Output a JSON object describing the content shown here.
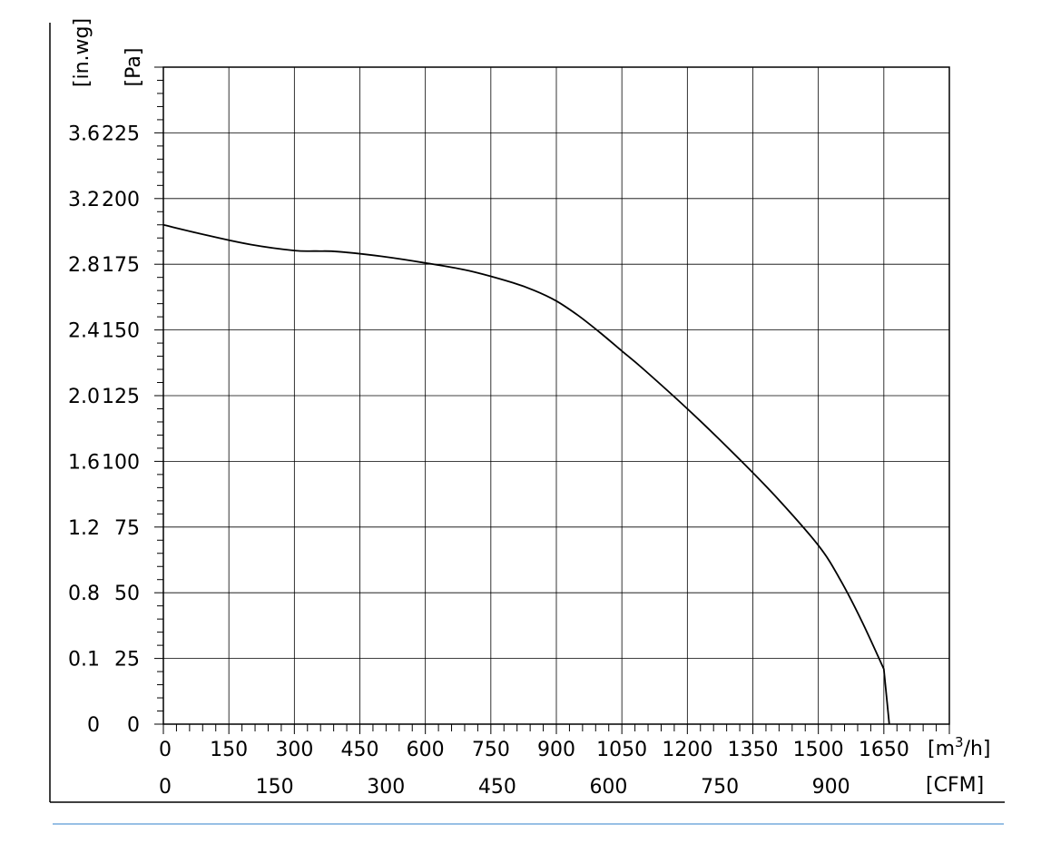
{
  "chart_data": {
    "type": "line",
    "title": "",
    "x_primary": {
      "unit_label": "[m³/h]",
      "min": 0,
      "max": 1800,
      "ticks": [
        0,
        150,
        300,
        450,
        600,
        750,
        900,
        1050,
        1200,
        1350,
        1500,
        1650
      ],
      "tick_labels": [
        "0",
        "150",
        "300",
        "450",
        "600",
        "750",
        "900",
        "1050",
        "1200",
        "1350",
        "1500",
        "1650"
      ],
      "minor_step": 30
    },
    "x_secondary": {
      "unit_label": "[CFM]",
      "ticks_m3h": [
        0,
        254.9,
        509.7,
        764.6,
        1019.4,
        1274.3,
        1529.1
      ],
      "tick_labels": [
        "0",
        "150",
        "300",
        "450",
        "600",
        "750",
        "900"
      ]
    },
    "y_primary": {
      "unit_label": "[Pa]",
      "min": 0,
      "max": 250,
      "ticks": [
        0,
        25,
        50,
        75,
        100,
        125,
        150,
        175,
        200,
        225
      ],
      "tick_labels": [
        "0",
        "25",
        "50",
        "75",
        "100",
        "125",
        "150",
        "175",
        "200",
        "225"
      ],
      "minor_step": 5
    },
    "y_secondary": {
      "unit_label": "[in.wg]",
      "tick_labels": [
        "0",
        "0.1",
        "0.8",
        "1.2",
        "1.6",
        "2.0",
        "2.4",
        "2.8",
        "3.2",
        "3.6"
      ]
    },
    "grid": true,
    "series": [
      {
        "color": "#000000",
        "x": [
          0,
          100,
          200,
          300,
          350,
          400,
          500,
          600,
          700,
          800,
          850,
          900,
          950,
          1000,
          1050,
          1100,
          1200,
          1300,
          1400,
          1500,
          1550,
          1600,
          1650
        ],
        "y": [
          190,
          186,
          182.5,
          180.2,
          180,
          179.8,
          178,
          175.5,
          172.5,
          168,
          165,
          161,
          155.5,
          149,
          142,
          135,
          120,
          104,
          87,
          68,
          55,
          39,
          21
        ]
      }
    ]
  },
  "footer": {
    "rule_color": "#5b9bd5"
  }
}
